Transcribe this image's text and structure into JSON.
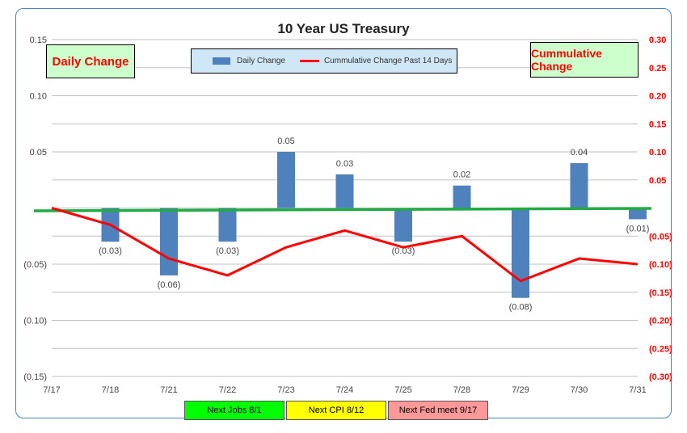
{
  "chart_data": {
    "type": "bar",
    "title": "10 Year US Treasury",
    "categories": [
      "7/17",
      "7/18",
      "7/21",
      "7/22",
      "7/23",
      "7/24",
      "7/25",
      "7/28",
      "7/29",
      "7/30",
      "7/31"
    ],
    "series": [
      {
        "name": "Daily Change",
        "type": "bar",
        "axis": "left",
        "color": "#4f81bd",
        "values": [
          null,
          -0.03,
          -0.06,
          -0.03,
          0.05,
          0.03,
          -0.03,
          0.02,
          -0.08,
          0.04,
          -0.01
        ],
        "labels": [
          "",
          "(0.03)",
          "(0.06)",
          "(0.03)",
          "0.05",
          "0.03",
          "(0.03)",
          "0.02",
          "(0.08)",
          "0.04",
          "(0.01)"
        ]
      },
      {
        "name": "Cummulative Change Past 14 Days",
        "type": "line",
        "axis": "right",
        "color": "#ff0000",
        "values": [
          0.0,
          -0.03,
          -0.09,
          -0.12,
          -0.07,
          -0.04,
          -0.07,
          -0.05,
          -0.13,
          -0.09,
          -0.1
        ]
      }
    ],
    "left_axis": {
      "ylim": [
        -0.15,
        0.15
      ],
      "ticks": [
        0.15,
        0.1,
        0.05,
        0,
        -0.05,
        -0.1,
        -0.15
      ],
      "tick_labels": [
        "0.15",
        "0.10",
        "0.05",
        "",
        "(0.05)",
        "(0.10)",
        "(0.15)"
      ]
    },
    "right_axis": {
      "ylim": [
        -0.3,
        0.3
      ],
      "ticks": [
        0.3,
        0.25,
        0.2,
        0.15,
        0.1,
        0.05,
        0,
        -0.05,
        -0.1,
        -0.15,
        -0.2,
        -0.25,
        -0.3
      ],
      "tick_labels": [
        "0.30",
        "0.25",
        "0.20",
        "0.15",
        "0.10",
        "0.05",
        "",
        "(0.05)",
        "(0.10)",
        "(0.15)",
        "(0.20)",
        "(0.25)",
        "(0.30)"
      ],
      "color": "#ff0000"
    },
    "zero_line_color": "#22aa44",
    "grid": true
  },
  "boxes": {
    "daily": "Daily Change",
    "cumulative": "Cummulative Change"
  },
  "legend": {
    "series1": "Daily Change",
    "series2": "Cummulative Change Past 14 Days"
  },
  "events": {
    "jobs": "Next Jobs 8/1",
    "cpi": "Next CPI 8/12",
    "fed": "Next Fed meet 9/17"
  }
}
